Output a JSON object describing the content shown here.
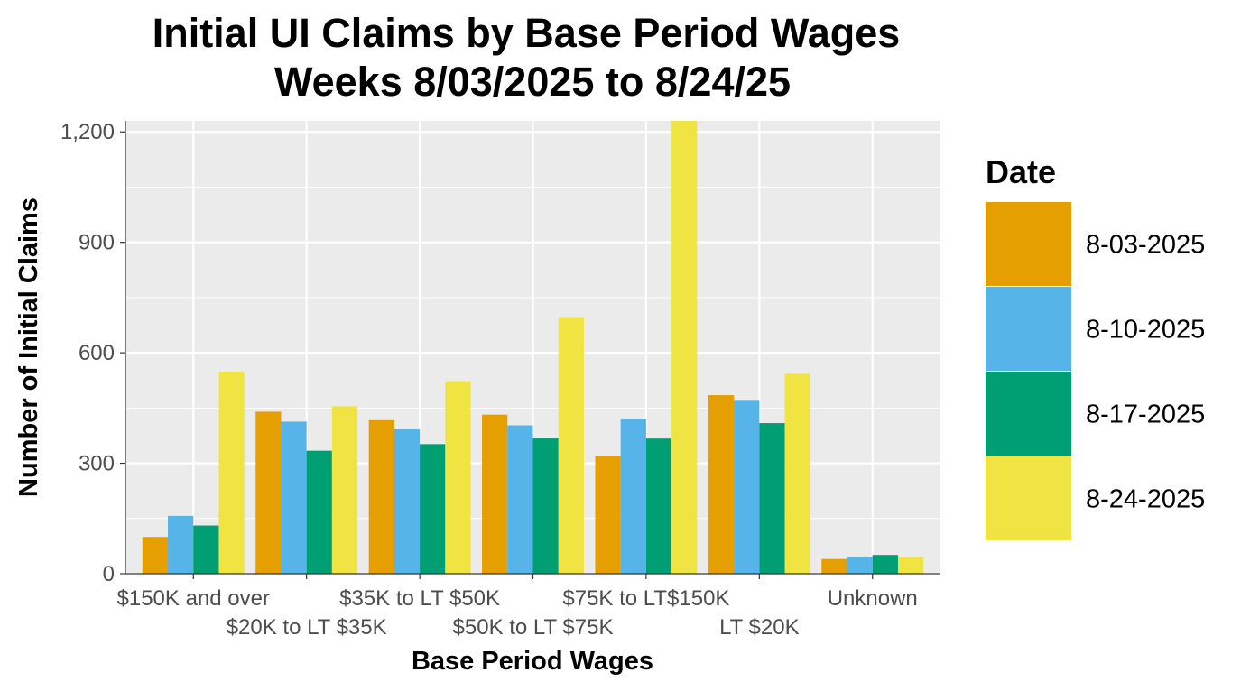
{
  "chart_data": {
    "type": "bar",
    "title_lines": [
      "Initial UI Claims by Base Period Wages",
      "Weeks 8/03/2025 to 8/24/25"
    ],
    "xlabel": "Base Period Wages",
    "ylabel": "Number of Initial Claims",
    "ylim": [
      0,
      1230
    ],
    "yticks": [
      0,
      300,
      600,
      900,
      1200
    ],
    "ytick_labels": [
      "0",
      "300",
      "600",
      "900",
      "1,200"
    ],
    "grid": true,
    "legend_title": "Date",
    "legend_position": "right",
    "categories": [
      "$150K and over",
      "$20K to LT $35K",
      "$35K to LT $50K",
      "$50K to LT $75K",
      "$75K to LT$150K",
      "LT $20K",
      "Unknown"
    ],
    "series": [
      {
        "name": "8-03-2025",
        "color": "#E69F00",
        "values": [
          100,
          440,
          417,
          432,
          321,
          485,
          40
        ]
      },
      {
        "name": "8-10-2025",
        "color": "#56B4E9",
        "values": [
          157,
          413,
          392,
          403,
          421,
          472,
          46
        ]
      },
      {
        "name": "8-17-2025",
        "color": "#009E73",
        "values": [
          131,
          334,
          352,
          370,
          367,
          409,
          51
        ]
      },
      {
        "name": "8-24-2025",
        "color": "#F0E442",
        "values": [
          549,
          455,
          523,
          697,
          1230,
          543,
          44
        ]
      }
    ]
  }
}
